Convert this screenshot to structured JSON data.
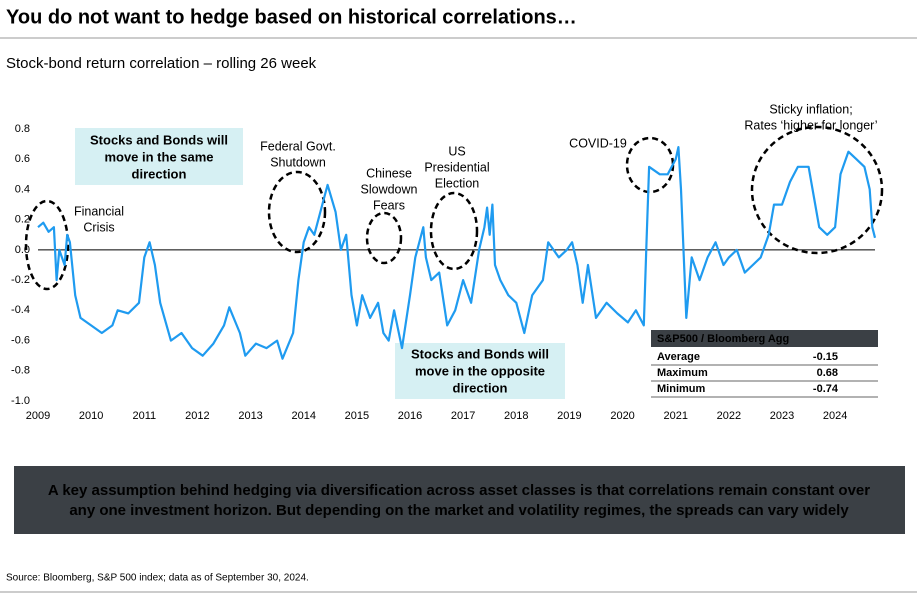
{
  "chart_data": {
    "type": "line",
    "title": "You do not want to hedge based on historical correlations…",
    "subtitle": "Stock-bond return correlation – rolling 26 week",
    "xlim": [
      2009,
      2024.75
    ],
    "xticks": [
      2009,
      2010,
      2011,
      2012,
      2013,
      2014,
      2015,
      2016,
      2017,
      2018,
      2019,
      2020,
      2021,
      2022,
      2023,
      2024
    ],
    "ylim": [
      -1,
      0.8
    ],
    "yticks": [
      0.8,
      0.6,
      0.4,
      0.2,
      {
        "value": 0,
        "label": "0.0"
      },
      -0.2,
      -0.4,
      -0.6,
      -0.8,
      {
        "value": -1,
        "label": "-1.0"
      }
    ],
    "grid": false,
    "series": [
      {
        "color": "#1f9bf0",
        "x": [
          2009.0,
          2009.1,
          2009.2,
          2009.3,
          2009.35,
          2009.4,
          2009.5,
          2009.55,
          2009.6,
          2009.7,
          2009.8,
          2010.0,
          2010.2,
          2010.4,
          2010.5,
          2010.7,
          2010.9,
          2011.0,
          2011.1,
          2011.2,
          2011.3,
          2011.5,
          2011.7,
          2011.9,
          2012.1,
          2012.3,
          2012.5,
          2012.6,
          2012.8,
          2012.9,
          2013.1,
          2013.3,
          2013.5,
          2013.6,
          2013.8,
          2013.9,
          2014.0,
          2014.1,
          2014.2,
          2014.35,
          2014.45,
          2014.6,
          2014.7,
          2014.8,
          2014.9,
          2015.0,
          2015.1,
          2015.25,
          2015.4,
          2015.5,
          2015.6,
          2015.7,
          2015.85,
          2016.0,
          2016.1,
          2016.25,
          2016.3,
          2016.4,
          2016.55,
          2016.7,
          2016.85,
          2017.0,
          2017.15,
          2017.3,
          2017.4,
          2017.45,
          2017.5,
          2017.55,
          2017.6,
          2017.7,
          2017.85,
          2018.0,
          2018.15,
          2018.3,
          2018.5,
          2018.6,
          2018.8,
          2018.95,
          2019.05,
          2019.15,
          2019.25,
          2019.35,
          2019.5,
          2019.7,
          2019.9,
          2020.1,
          2020.25,
          2020.4,
          2020.45,
          2020.5,
          2020.7,
          2020.85,
          2021.0,
          2021.05,
          2021.1,
          2021.2,
          2021.3,
          2021.45,
          2021.6,
          2021.75,
          2021.9,
          2022.0,
          2022.15,
          2022.3,
          2022.45,
          2022.6,
          2022.75,
          2022.85,
          2023.0,
          2023.15,
          2023.3,
          2023.5,
          2023.6,
          2023.7,
          2023.85,
          2024.0,
          2024.1,
          2024.25,
          2024.4,
          2024.55,
          2024.65,
          2024.7,
          2024.75
        ],
        "values": [
          0.15,
          0.18,
          0.12,
          0.15,
          -0.2,
          0.0,
          -0.1,
          0.1,
          0.05,
          -0.3,
          -0.45,
          -0.5,
          -0.55,
          -0.5,
          -0.4,
          -0.42,
          -0.35,
          -0.05,
          0.05,
          -0.1,
          -0.35,
          -0.6,
          -0.55,
          -0.65,
          -0.7,
          -0.62,
          -0.5,
          -0.38,
          -0.55,
          -0.7,
          -0.62,
          -0.65,
          -0.6,
          -0.72,
          -0.55,
          -0.2,
          0.05,
          0.15,
          0.1,
          0.3,
          0.43,
          0.25,
          0.0,
          0.1,
          -0.3,
          -0.5,
          -0.3,
          -0.45,
          -0.35,
          -0.55,
          -0.6,
          -0.4,
          -0.65,
          -0.3,
          -0.05,
          0.15,
          -0.05,
          -0.2,
          -0.15,
          -0.5,
          -0.4,
          -0.2,
          -0.35,
          0.0,
          0.15,
          0.28,
          0.1,
          0.3,
          -0.1,
          -0.2,
          -0.3,
          -0.35,
          -0.55,
          -0.3,
          -0.2,
          0.05,
          -0.05,
          0.0,
          0.05,
          -0.1,
          -0.35,
          -0.1,
          -0.45,
          -0.35,
          -0.42,
          -0.48,
          -0.4,
          -0.5,
          0.05,
          0.55,
          0.5,
          0.5,
          0.6,
          0.68,
          0.4,
          -0.45,
          -0.05,
          -0.2,
          -0.05,
          0.05,
          -0.1,
          -0.05,
          0.0,
          -0.15,
          -0.1,
          -0.05,
          0.1,
          0.3,
          0.3,
          0.45,
          0.55,
          0.55,
          0.35,
          0.15,
          0.1,
          0.15,
          0.5,
          0.65,
          0.6,
          0.55,
          0.4,
          0.15,
          0.08
        ]
      }
    ],
    "annotations": [
      {
        "lines": [
          "Financial",
          "Crisis"
        ]
      },
      {
        "lines": [
          "Federal Govt.",
          "Shutdown"
        ]
      },
      {
        "lines": [
          "Chinese",
          "Slowdown",
          "Fears"
        ]
      },
      {
        "lines": [
          "US",
          "Presidential",
          "Election"
        ]
      },
      {
        "lines": [
          "COVID-19"
        ]
      },
      {
        "lines": [
          "Sticky inflation;",
          "Rates ‘higher for longer’"
        ]
      }
    ],
    "boxes": [
      {
        "lines": [
          "Stocks and Bonds will",
          "move in the same",
          "direction"
        ]
      },
      {
        "lines": [
          "Stocks and Bonds will",
          "move in the opposite",
          "direction"
        ]
      }
    ],
    "stats_table": {
      "header": "S&P500 / Bloomberg Agg",
      "rows": [
        [
          "Average",
          -0.15
        ],
        [
          "Maximum",
          0.68
        ],
        [
          "Minimum",
          -0.74
        ]
      ]
    },
    "callout": [
      "A key assumption behind hedging via diversification across asset classes is that correlations remain constant over",
      "any one investment horizon. But depending on the market and volatility regimes, the spreads can vary widely"
    ],
    "source": "Source: Bloomberg, S&P 500 index; data as of September 30, 2024."
  }
}
